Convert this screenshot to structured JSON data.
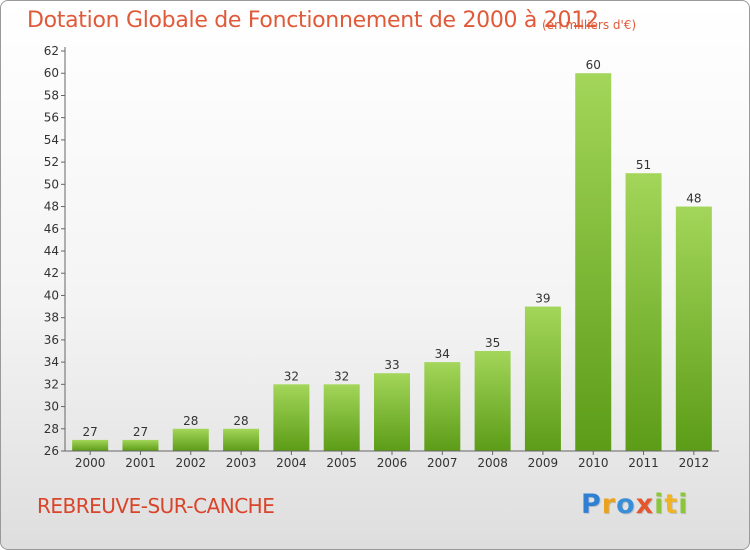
{
  "title": "Dotation Globale de Fonctionnement de 2000 à 2012",
  "subtitle": "(en milliers d'€)",
  "commune": "REBREUVE-SUR-CANCHE",
  "logo": {
    "text": "Proxiti",
    "letters": [
      "P",
      "r",
      "o",
      "x",
      "i",
      "t",
      "i"
    ]
  },
  "colors": {
    "title": "#e05a3a",
    "bar_top": "#a3d65a",
    "bar_bottom": "#5c9c17",
    "axis": "#555555"
  },
  "chart_data": {
    "type": "bar",
    "title": "Dotation Globale de Fonctionnement de 2000 à 2012",
    "subtitle": "(en milliers d'€)",
    "xlabel": "",
    "ylabel": "",
    "categories": [
      "2000",
      "2001",
      "2002",
      "2003",
      "2004",
      "2005",
      "2006",
      "2007",
      "2008",
      "2009",
      "2010",
      "2011",
      "2012"
    ],
    "values": [
      27,
      27,
      28,
      28,
      32,
      32,
      33,
      34,
      35,
      39,
      60,
      51,
      48
    ],
    "ylim": [
      26,
      62
    ],
    "yticks": [
      26,
      28,
      30,
      32,
      34,
      36,
      38,
      40,
      42,
      44,
      46,
      48,
      50,
      52,
      54,
      56,
      58,
      60,
      62
    ],
    "grid": false,
    "data_labels": true
  }
}
